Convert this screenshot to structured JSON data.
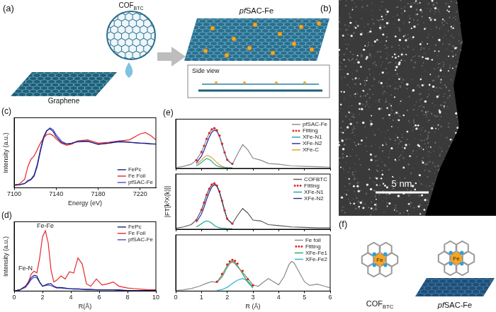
{
  "chart_data": [
    {
      "type": "line",
      "title": "(c)",
      "xlabel": "Energy (eV)",
      "ylabel": "Intensity (a.u.)",
      "x": [
        7100,
        7105,
        7110,
        7113,
        7116,
        7119,
        7122,
        7125,
        7128,
        7131,
        7134,
        7137,
        7140,
        7145,
        7150,
        7155,
        7160,
        7170,
        7180,
        7190,
        7200,
        7210,
        7220,
        7225,
        7230,
        7235
      ],
      "series": [
        {
          "name": "FePc",
          "color": "#1f1f7a",
          "values": [
            0.01,
            0.02,
            0.05,
            0.12,
            0.15,
            0.25,
            0.5,
            0.85,
            1.15,
            1.3,
            1.34,
            1.28,
            1.15,
            1.02,
            0.98,
            1.0,
            1.04,
            1.05,
            0.97,
            1.0,
            1.05,
            1.02,
            1.0,
            1.0,
            0.99,
            0.98
          ]
        },
        {
          "name": "Fe Foil",
          "color": "#e8262b",
          "values": [
            0.02,
            0.04,
            0.15,
            0.45,
            0.62,
            0.7,
            0.85,
            1.0,
            1.12,
            1.2,
            1.22,
            1.18,
            1.1,
            1.0,
            0.95,
            0.98,
            1.05,
            1.08,
            1.0,
            1.02,
            1.05,
            1.08,
            1.22,
            1.25,
            1.18,
            1.08
          ]
        },
        {
          "name": "pfSAC-Fe",
          "color": "#4b4bc8",
          "values": [
            0.01,
            0.02,
            0.05,
            0.1,
            0.14,
            0.22,
            0.45,
            0.8,
            1.1,
            1.28,
            1.36,
            1.32,
            1.2,
            1.05,
            0.98,
            1.0,
            1.03,
            1.04,
            0.98,
            1.0,
            1.03,
            1.02,
            1.0,
            0.99,
            0.98,
            0.98
          ]
        }
      ],
      "xlim": [
        7100,
        7235
      ],
      "xticks": [
        7100,
        7140,
        7180,
        7220
      ],
      "ylim": [
        -0.05,
        1.6
      ],
      "tick_labels": "x",
      "legend": "lower right",
      "grid": false
    },
    {
      "type": "line",
      "title": "(d)",
      "xlabel": "R(Å)",
      "ylabel": "Intensity (a.u.)",
      "x": [
        0,
        0.4,
        0.8,
        1.0,
        1.2,
        1.4,
        1.6,
        1.8,
        2.0,
        2.2,
        2.4,
        2.6,
        2.8,
        3.0,
        3.3,
        3.6,
        3.9,
        4.2,
        4.5,
        4.8,
        5.1,
        5.4,
        5.8,
        6.2,
        6.6,
        7.0,
        7.4,
        8,
        8.5,
        9,
        9.5,
        10
      ],
      "series": [
        {
          "name": "FePc",
          "color": "#1f1f7a",
          "values": [
            0,
            0.02,
            0.08,
            0.14,
            0.22,
            0.26,
            0.25,
            0.15,
            0.08,
            0.1,
            0.12,
            0.12,
            0.08,
            0.06,
            0.06,
            0.05,
            0.04,
            0.04,
            0.04,
            0.03,
            0.03,
            0.03,
            0.02,
            0.02,
            0.02,
            0.02,
            0.02,
            0.01,
            0.01,
            0.01,
            0.01,
            0.01
          ]
        },
        {
          "name": "Fe Foil",
          "color": "#e8262b",
          "values": [
            0,
            0.02,
            0.08,
            0.15,
            0.28,
            0.33,
            0.3,
            0.55,
            0.9,
            1.0,
            0.8,
            0.35,
            0.15,
            0.18,
            0.25,
            0.2,
            0.32,
            0.3,
            0.55,
            0.45,
            0.12,
            0.08,
            0.2,
            0.1,
            0.12,
            0.15,
            0.08,
            0.05,
            0.04,
            0.03,
            0.02,
            0.02
          ]
        },
        {
          "name": "pfSAC-Fe",
          "color": "#4b4bc8",
          "values": [
            0,
            0.02,
            0.06,
            0.12,
            0.19,
            0.23,
            0.22,
            0.14,
            0.08,
            0.09,
            0.1,
            0.09,
            0.07,
            0.05,
            0.05,
            0.04,
            0.04,
            0.03,
            0.03,
            0.03,
            0.02,
            0.02,
            0.02,
            0.02,
            0.02,
            0.02,
            0.01,
            0.01,
            0.01,
            0.01,
            0.01,
            0.01
          ]
        }
      ],
      "annotations": [
        {
          "text": "Fe-Fe",
          "x": 2.2,
          "y": 1.02
        },
        {
          "text": "Fe-N",
          "x": 0.8,
          "y": 0.32
        }
      ],
      "xlim": [
        0,
        10
      ],
      "xticks": [
        0,
        2,
        4,
        6,
        8,
        10
      ],
      "ylim": [
        0,
        1.15
      ],
      "tick_labels": "x",
      "legend": "upper right",
      "grid": false
    },
    {
      "type": "line",
      "title": "(e)",
      "x": [
        0,
        0.3,
        0.6,
        0.8,
        1.0,
        1.1,
        1.2,
        1.3,
        1.4,
        1.5,
        1.6,
        1.7,
        1.8,
        1.9,
        2.0,
        2.2,
        2.4,
        2.6,
        2.8,
        3.0,
        3.3,
        3.6,
        4.0,
        4.5,
        5,
        5.5,
        6
      ],
      "series": [
        {
          "name": "pfSAC-Fe",
          "color": "#8a8a8a",
          "values": [
            0.02,
            0.05,
            0.1,
            0.2,
            0.4,
            0.55,
            0.72,
            0.86,
            0.95,
            0.98,
            0.93,
            0.8,
            0.6,
            0.38,
            0.2,
            0.1,
            0.35,
            0.58,
            0.45,
            0.25,
            0.2,
            0.12,
            0.1,
            0.06,
            0.05,
            0.04,
            0.03
          ]
        },
        {
          "name": "Fitting",
          "color": "#e02020",
          "marker": "dot",
          "values": [
            null,
            null,
            null,
            0.2,
            0.4,
            0.55,
            0.72,
            0.86,
            0.95,
            0.98,
            0.93,
            0.8,
            0.6,
            0.39,
            0.21,
            0.11,
            null,
            null,
            null,
            null,
            null,
            null,
            null,
            null,
            null,
            null,
            null
          ]
        },
        {
          "name": "XFe-N1",
          "color": "#1fa39a",
          "values": [
            null,
            null,
            null,
            0.06,
            0.14,
            0.2,
            0.24,
            0.22,
            0.17,
            0.11,
            0.06,
            0.04,
            0.03,
            0.02,
            0.01,
            0.01,
            null,
            null,
            null,
            null,
            null,
            null,
            null,
            null,
            null,
            null,
            null
          ]
        },
        {
          "name": "XFe-N2",
          "color": "#2a2a9a",
          "values": [
            null,
            null,
            null,
            0.13,
            0.3,
            0.44,
            0.6,
            0.76,
            0.88,
            0.93,
            0.9,
            0.78,
            0.58,
            0.38,
            0.21,
            0.1,
            null,
            null,
            null,
            null,
            null,
            null,
            null,
            null,
            null,
            null,
            null
          ]
        },
        {
          "name": "XFe-C",
          "color": "#e0a020",
          "values": [
            null,
            null,
            null,
            0.1,
            0.2,
            0.27,
            0.31,
            0.3,
            0.26,
            0.2,
            0.14,
            0.09,
            0.05,
            0.03,
            0.02,
            0.01,
            null,
            null,
            null,
            null,
            null,
            null,
            null,
            null,
            null,
            null,
            null
          ]
        }
      ],
      "xlim": [
        0,
        6
      ],
      "xticks": [
        0,
        1,
        2,
        3,
        4,
        5,
        6
      ],
      "ylim": [
        0,
        1.2
      ],
      "tick_labels": false,
      "legend": "upper right",
      "grid": false
    },
    {
      "type": "line",
      "ylabel": "|FT[k³X(k)]|",
      "x": [
        0,
        0.3,
        0.6,
        0.8,
        1.0,
        1.1,
        1.2,
        1.3,
        1.4,
        1.5,
        1.6,
        1.7,
        1.8,
        1.9,
        2.0,
        2.2,
        2.4,
        2.6,
        2.8,
        3.0,
        3.3,
        3.6,
        4.0,
        4.5,
        5,
        5.5,
        6
      ],
      "series": [
        {
          "name": "COFBTC",
          "color": "#555555",
          "values": [
            0.02,
            0.05,
            0.1,
            0.2,
            0.42,
            0.58,
            0.75,
            0.88,
            0.97,
            1.0,
            0.95,
            0.82,
            0.62,
            0.4,
            0.22,
            0.12,
            0.3,
            0.45,
            0.35,
            0.2,
            0.18,
            0.1,
            0.08,
            0.05,
            0.04,
            0.03,
            0.03
          ]
        },
        {
          "name": "Fitting",
          "color": "#e02020",
          "marker": "dot",
          "values": [
            null,
            null,
            null,
            0.2,
            0.42,
            0.58,
            0.75,
            0.88,
            0.97,
            1.0,
            0.95,
            0.82,
            0.62,
            0.41,
            0.23,
            0.12,
            null,
            null,
            null,
            null,
            null,
            null,
            null,
            null,
            null,
            null,
            null
          ]
        },
        {
          "name": "XFe-N1",
          "color": "#1fa39a",
          "values": [
            null,
            null,
            null,
            0.05,
            0.12,
            0.16,
            0.18,
            0.17,
            0.13,
            0.08,
            0.05,
            0.03,
            0.02,
            0.02,
            0.01,
            0.01,
            null,
            null,
            null,
            null,
            null,
            null,
            null,
            null,
            null,
            null,
            null
          ]
        },
        {
          "name": "XFe-N2",
          "color": "#2a2a9a",
          "values": [
            null,
            null,
            null,
            0.15,
            0.33,
            0.48,
            0.65,
            0.8,
            0.92,
            0.97,
            0.93,
            0.8,
            0.6,
            0.4,
            0.22,
            0.11,
            null,
            null,
            null,
            null,
            null,
            null,
            null,
            null,
            null,
            null,
            null
          ]
        }
      ],
      "xlim": [
        0,
        6
      ],
      "xticks": [
        0,
        1,
        2,
        3,
        4,
        5,
        6
      ],
      "ylim": [
        0,
        1.2
      ],
      "tick_labels": false,
      "legend": "upper right",
      "grid": false
    },
    {
      "type": "line",
      "xlabel": "R (Å)",
      "x": [
        0,
        0.3,
        0.6,
        0.9,
        1.2,
        1.4,
        1.6,
        1.8,
        2.0,
        2.1,
        2.2,
        2.3,
        2.4,
        2.6,
        2.8,
        3.0,
        3.2,
        3.4,
        3.6,
        3.8,
        4.0,
        4.2,
        4.4,
        4.5,
        4.6,
        4.8,
        5.0,
        5.2,
        5.5,
        5.8,
        6.0
      ],
      "series": [
        {
          "name": "Fe foil",
          "color": "#8a8a8a",
          "values": [
            0.02,
            0.04,
            0.08,
            0.15,
            0.25,
            0.3,
            0.28,
            0.45,
            0.75,
            0.88,
            0.93,
            0.88,
            0.78,
            0.6,
            0.4,
            0.2,
            0.15,
            0.28,
            0.4,
            0.3,
            0.2,
            0.45,
            0.85,
            0.95,
            0.9,
            0.6,
            0.3,
            0.18,
            0.22,
            0.15,
            0.1
          ]
        },
        {
          "name": "Fitting",
          "color": "#e02020",
          "marker": "dot",
          "values": [
            null,
            null,
            null,
            null,
            null,
            null,
            0.3,
            0.55,
            0.85,
            0.95,
            1.0,
            0.97,
            0.88,
            0.65,
            0.38,
            0.18,
            null,
            null,
            null,
            null,
            null,
            null,
            null,
            null,
            null,
            null,
            null,
            null,
            null,
            null,
            null
          ]
        },
        {
          "name": "XFe-Fe1",
          "color": "#2fa44f",
          "values": [
            null,
            null,
            null,
            null,
            null,
            null,
            0.28,
            0.52,
            0.82,
            0.92,
            0.96,
            0.92,
            0.82,
            0.55,
            0.28,
            0.1,
            null,
            null,
            null,
            null,
            null,
            null,
            null,
            null,
            null,
            null,
            null,
            null,
            null,
            null,
            null
          ]
        },
        {
          "name": "XFe-Fe2",
          "color": "#2ab0d8",
          "values": [
            null,
            null,
            null,
            null,
            null,
            null,
            0.02,
            0.05,
            0.12,
            0.18,
            0.24,
            0.3,
            0.35,
            0.4,
            0.32,
            0.15,
            null,
            null,
            null,
            null,
            null,
            null,
            null,
            null,
            null,
            null,
            null,
            null,
            null,
            null,
            null
          ]
        }
      ],
      "xlim": [
        0,
        6
      ],
      "xticks": [
        0,
        1,
        2,
        3,
        4,
        5,
        6
      ],
      "ylim": [
        0,
        1.8
      ],
      "tick_labels": "x",
      "legend": "upper right",
      "grid": false
    }
  ],
  "diagram": {
    "a": {
      "label": "(a)",
      "inset": {
        "main": "COF",
        "sub": "BTC"
      },
      "product": {
        "italic": "pf",
        "main": "SAC-Fe"
      },
      "substrate": "Graphene",
      "side_view": "Side view"
    },
    "b": {
      "label": "(b)",
      "scale_bar": "5 nm"
    },
    "f": {
      "label": "(f)",
      "metal": "Fe",
      "structures": [
        {
          "main": "COF",
          "sub": "BTC"
        },
        {
          "italic": "pf",
          "main": "SAC-Fe"
        }
      ]
    }
  }
}
